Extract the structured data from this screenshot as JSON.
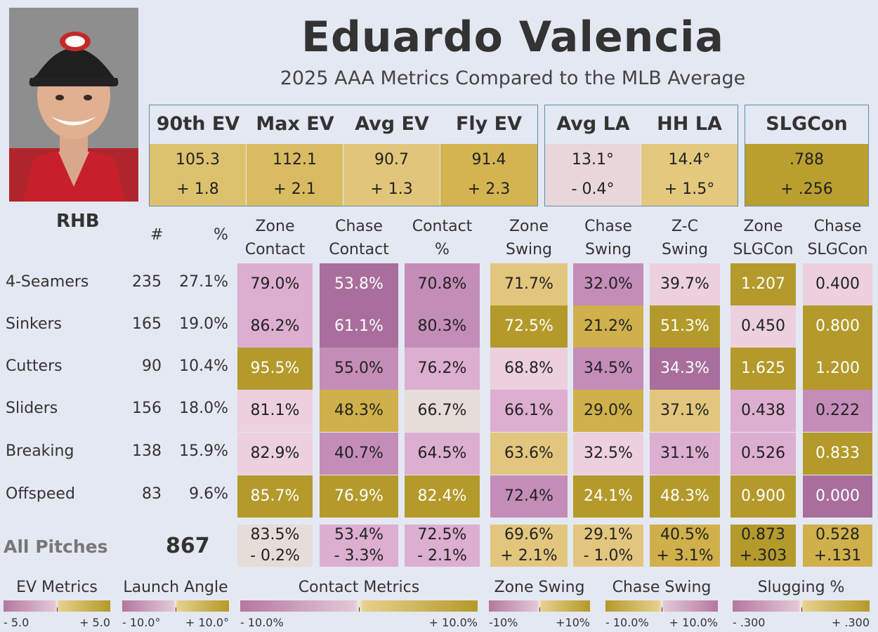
{
  "player": {
    "name": "Eduardo Valencia",
    "subtitle": "2025 AAA Metrics Compared to the MLB Average",
    "hand": "RHB"
  },
  "ev_box": {
    "headers": [
      "90th EV",
      "Max EV",
      "Avg EV",
      "Fly EV"
    ],
    "values": [
      "105.3",
      "112.1",
      "90.7",
      "91.4"
    ],
    "deltas": [
      "+ 1.8",
      "+ 2.1",
      "+ 1.3",
      "+ 2.3"
    ]
  },
  "la_box": {
    "headers": [
      "Avg LA",
      "HH LA"
    ],
    "values": [
      "13.1°",
      "14.4°"
    ],
    "deltas": [
      "- 0.4°",
      "+ 1.5°"
    ]
  },
  "slg_box": {
    "header": "SLGCon",
    "value": ".788",
    "delta": "+ .256"
  },
  "table": {
    "col_count": "#",
    "col_pct": "%",
    "columns": [
      [
        "Zone",
        "Contact"
      ],
      [
        "Chase",
        "Contact"
      ],
      [
        "Contact",
        "%"
      ],
      [
        "Zone",
        "Swing"
      ],
      [
        "Chase",
        "Swing"
      ],
      [
        "Z-C",
        "Swing"
      ],
      [
        "Zone",
        "SLGCon"
      ],
      [
        "Chase",
        "SLGCon"
      ]
    ],
    "rows": [
      {
        "label": "4-Seamers",
        "count": "235",
        "pct": "27.1%",
        "cells": [
          "79.0%",
          "53.8%",
          "70.8%",
          "71.7%",
          "32.0%",
          "39.7%",
          "1.207",
          "0.400"
        ]
      },
      {
        "label": "Sinkers",
        "count": "165",
        "pct": "19.0%",
        "cells": [
          "86.2%",
          "61.1%",
          "80.3%",
          "72.5%",
          "21.2%",
          "51.3%",
          "0.450",
          "0.800"
        ]
      },
      {
        "label": "Cutters",
        "count": "90",
        "pct": "10.4%",
        "cells": [
          "95.5%",
          "55.0%",
          "76.2%",
          "68.8%",
          "34.5%",
          "34.3%",
          "1.625",
          "1.200"
        ]
      },
      {
        "label": "Sliders",
        "count": "156",
        "pct": "18.0%",
        "cells": [
          "81.1%",
          "48.3%",
          "66.7%",
          "66.1%",
          "29.0%",
          "37.1%",
          "0.438",
          "0.222"
        ]
      },
      {
        "label": "Breaking",
        "count": "138",
        "pct": "15.9%",
        "cells": [
          "82.9%",
          "40.7%",
          "64.5%",
          "63.6%",
          "32.5%",
          "31.1%",
          "0.526",
          "0.833"
        ]
      },
      {
        "label": "Offspeed",
        "count": "83",
        "pct": "9.6%",
        "cells": [
          "85.7%",
          "76.9%",
          "82.4%",
          "72.4%",
          "24.1%",
          "48.3%",
          "0.900",
          "0.000"
        ]
      }
    ],
    "total": {
      "label": "All Pitches",
      "count": "867",
      "cells": [
        "83.5%",
        "53.4%",
        "72.5%",
        "69.6%",
        "29.1%",
        "40.5%",
        "0.873",
        "0.528"
      ],
      "deltas": [
        "- 0.2%",
        "- 3.3%",
        "- 2.1%",
        "+ 2.1%",
        "- 1.0%",
        "+ 3.1%",
        "+.303",
        "+.131"
      ]
    }
  },
  "legend": [
    {
      "title": "EV Metrics",
      "min": "- 5.0",
      "max": "+ 5.0"
    },
    {
      "title": "Launch Angle",
      "min": "- 10.0°",
      "max": "+ 10.0°"
    },
    {
      "title": "Contact Metrics",
      "min": "- 10.0%",
      "max": "+ 10.0%"
    },
    {
      "title": "Zone Swing",
      "min": "-10%",
      "max": "+10%"
    },
    {
      "title": "Chase Swing",
      "min": "- 10.0%",
      "max": "+ 10.0%"
    },
    {
      "title": "Slugging %",
      "min": "- .300",
      "max": "+ .300"
    }
  ],
  "colors": {
    "purple_dark": "#a86e9c",
    "purple_mid": "#c48db8",
    "purple_light": "#dcaed0",
    "pink_light": "#ecd0de",
    "neutral": "#e6dcd8",
    "gold_light": "#e2c67e",
    "gold_mid": "#cfb04a",
    "gold_dark": "#b39a2a"
  }
}
